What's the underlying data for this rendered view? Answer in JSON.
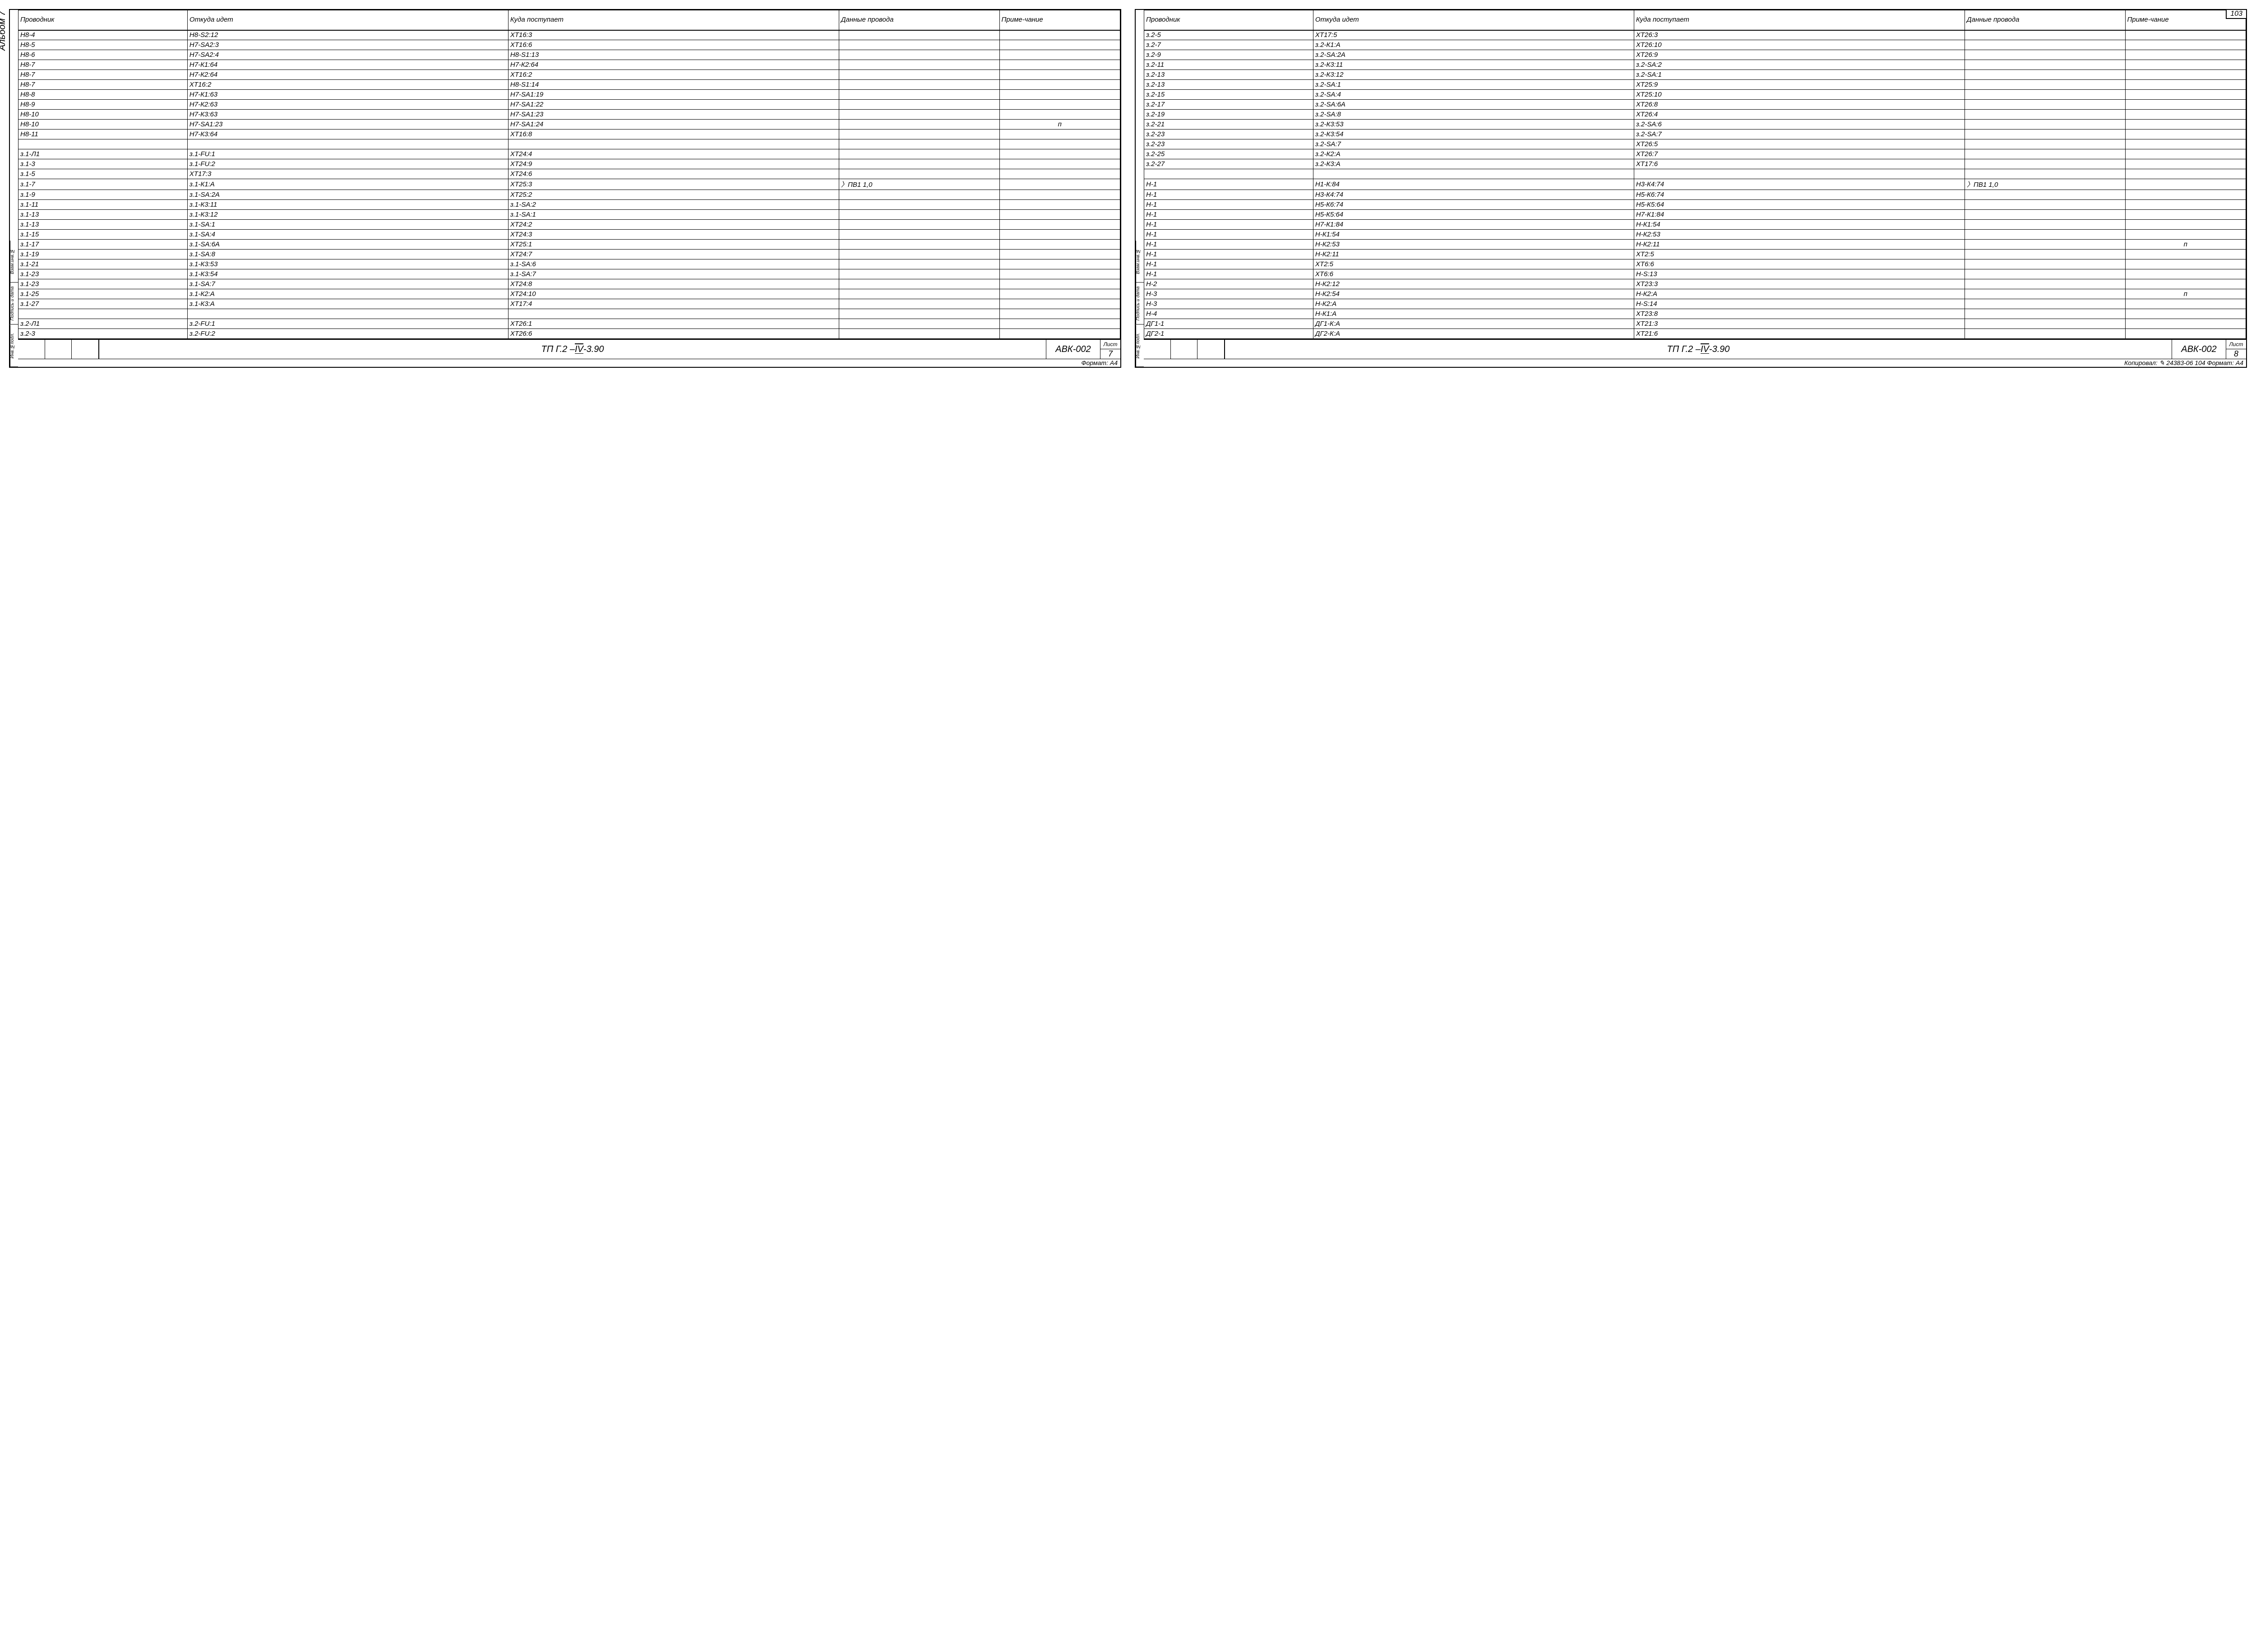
{
  "outer_page_number": "103",
  "album_label": "Альбом 7",
  "headers": {
    "provodnik": "Проводник",
    "otkuda": "Откуда идет",
    "kuda": "Куда поступает",
    "dannye": "Данные провода",
    "prim": "Приме-чание"
  },
  "side_labels": [
    "Инв.№подл.",
    "Подпись и дата",
    "Взам.инв.№"
  ],
  "title_block": {
    "designation_prefix": "ТП Г.2 – ",
    "designation_roman": "IV",
    "designation_suffix": "-3.90",
    "code": "АВК-002",
    "sheet_label": "Лист"
  },
  "left_page": {
    "sheet_num": "7",
    "footer": "Формат: А4",
    "dannye_span": "ПВ1  1,0",
    "rows": [
      {
        "p": "Н8-4",
        "o": "Н8-S2:12",
        "k": "XT16:3",
        "d": "",
        "n": ""
      },
      {
        "p": "Н8-5",
        "o": "Н7-SA2:3",
        "k": "XT16:6",
        "d": "",
        "n": ""
      },
      {
        "p": "Н8-6",
        "o": "Н7-SA2:4",
        "k": "Н8-S1:13",
        "d": "",
        "n": ""
      },
      {
        "p": "Н8-7",
        "o": "Н7-К1:64",
        "k": "Н7-К2:64",
        "d": "",
        "n": ""
      },
      {
        "p": "Н8-7",
        "o": "Н7-К2:64",
        "k": "XT16:2",
        "d": "",
        "n": ""
      },
      {
        "p": "Н8-7",
        "o": "XT16:2",
        "k": "Н8-S1:14",
        "d": "",
        "n": ""
      },
      {
        "p": "Н8-8",
        "o": "Н7-К1:63",
        "k": "Н7-SA1:19",
        "d": "",
        "n": ""
      },
      {
        "p": "Н8-9",
        "o": "Н7-К2:63",
        "k": "Н7-SA1:22",
        "d": "",
        "n": ""
      },
      {
        "p": "Н8-10",
        "o": "Н7-К3:63",
        "k": "Н7-SA1:23",
        "d": "",
        "n": ""
      },
      {
        "p": "Н8-10",
        "o": "Н7-SA1:23",
        "k": "Н7-SA1:24",
        "d": "",
        "n": "п"
      },
      {
        "p": "Н8-11",
        "o": "Н7-К3:64",
        "k": "XT16:8",
        "d": "",
        "n": ""
      },
      {
        "p": "",
        "o": "",
        "k": "",
        "d": "",
        "n": ""
      },
      {
        "p": "з.1-Л1",
        "o": "з.1-FU:1",
        "k": "XT24:4",
        "d": "",
        "n": ""
      },
      {
        "p": "з.1-3",
        "o": "з.1-FU:2",
        "k": "XT24:9",
        "d": "",
        "n": ""
      },
      {
        "p": "з.1-5",
        "o": "XT17:3",
        "k": "XT24:6",
        "d": "",
        "n": ""
      },
      {
        "p": "з.1-7",
        "o": "з.1-К1:А",
        "k": "XT25:3",
        "d": "span",
        "n": ""
      },
      {
        "p": "з.1-9",
        "o": "з.1-SA:2А",
        "k": "XT25:2",
        "d": "",
        "n": ""
      },
      {
        "p": "з.1-11",
        "o": "з.1-К3:11",
        "k": "з.1-SA:2",
        "d": "",
        "n": ""
      },
      {
        "p": "з.1-13",
        "o": "з.1-К3:12",
        "k": "з.1-SA:1",
        "d": "",
        "n": ""
      },
      {
        "p": "з.1-13",
        "o": "з.1-SA:1",
        "k": "XT24:2",
        "d": "",
        "n": ""
      },
      {
        "p": "з.1-15",
        "o": "з.1-SA:4",
        "k": "XT24:3",
        "d": "",
        "n": ""
      },
      {
        "p": "з.1-17",
        "o": "з.1-SA:6А",
        "k": "XT25:1",
        "d": "",
        "n": ""
      },
      {
        "p": "з.1-19",
        "o": "з.1-SA:8",
        "k": "XT24:7",
        "d": "",
        "n": ""
      },
      {
        "p": "з.1-21",
        "o": "з.1-К3:53",
        "k": "з.1-SA:6",
        "d": "",
        "n": ""
      },
      {
        "p": "з.1-23",
        "o": "з.1-К3:54",
        "k": "з.1-SA:7",
        "d": "",
        "n": ""
      },
      {
        "p": "з.1-23",
        "o": "з.1-SA:7",
        "k": "XT24:8",
        "d": "",
        "n": ""
      },
      {
        "p": "з.1-25",
        "o": "з.1-К2:А",
        "k": "XT24:10",
        "d": "",
        "n": ""
      },
      {
        "p": "з.1-27",
        "o": "з.1-К3:А",
        "k": "XT17:4",
        "d": "",
        "n": ""
      },
      {
        "p": "",
        "o": "",
        "k": "",
        "d": "",
        "n": ""
      },
      {
        "p": "з.2-Л1",
        "o": "з.2-FU:1",
        "k": "XT26:1",
        "d": "",
        "n": ""
      },
      {
        "p": "з.2-3",
        "o": "з.2-FU:2",
        "k": "XT26:6",
        "d": "",
        "n": ""
      }
    ]
  },
  "right_page": {
    "sheet_num": "8",
    "footer": "Копировал: ✎   24383-06 104 Формат: А4",
    "dannye_span": "ПВ1  1,0",
    "rows": [
      {
        "p": "з.2-5",
        "o": "XT17:5",
        "k": "XT26:3",
        "d": "",
        "n": ""
      },
      {
        "p": "з.2-7",
        "o": "з.2-К1:А",
        "k": "XT26:10",
        "d": "",
        "n": ""
      },
      {
        "p": "з.2-9",
        "o": "з.2-SA:2А",
        "k": "XT26:9",
        "d": "",
        "n": ""
      },
      {
        "p": "з.2-11",
        "o": "з.2-К3:11",
        "k": "з.2-SA:2",
        "d": "",
        "n": ""
      },
      {
        "p": "з.2-13",
        "o": "з.2-К3:12",
        "k": "з.2-SA:1",
        "d": "",
        "n": ""
      },
      {
        "p": "з.2-13",
        "o": "з.2-SA:1",
        "k": "XT25:9",
        "d": "",
        "n": ""
      },
      {
        "p": "з.2-15",
        "o": "з.2-SA:4",
        "k": "XT25:10",
        "d": "",
        "n": ""
      },
      {
        "p": "з.2-17",
        "o": "з.2-SA:6А",
        "k": "XT26:8",
        "d": "",
        "n": ""
      },
      {
        "p": "з.2-19",
        "o": "з.2-SA:8",
        "k": "XT26:4",
        "d": "",
        "n": ""
      },
      {
        "p": "з.2-21",
        "o": "з.2-К3:53",
        "k": "з.2-SA:6",
        "d": "",
        "n": ""
      },
      {
        "p": "з.2-23",
        "o": "з.2-К3:54",
        "k": "з.2-SA:7",
        "d": "",
        "n": ""
      },
      {
        "p": "з.2-23",
        "o": "з.2-SA:7",
        "k": "XT26:5",
        "d": "",
        "n": ""
      },
      {
        "p": "з.2-25",
        "o": "з.2-К2:А",
        "k": "XT26:7",
        "d": "",
        "n": ""
      },
      {
        "p": "з.2-27",
        "o": "з.2-К3:А",
        "k": "XT17:6",
        "d": "",
        "n": ""
      },
      {
        "p": "",
        "o": "",
        "k": "",
        "d": "",
        "n": ""
      },
      {
        "p": "Н-1",
        "o": "Н1-К:84",
        "k": "Н3-К4:74",
        "d": "span",
        "n": ""
      },
      {
        "p": "Н-1",
        "o": "Н3-К4:74",
        "k": "Н5-К6:74",
        "d": "",
        "n": ""
      },
      {
        "p": "Н-1",
        "o": "Н5-К6:74",
        "k": "Н5-К5:64",
        "d": "",
        "n": ""
      },
      {
        "p": "Н-1",
        "o": "Н5-К5:64",
        "k": "Н7-К1:84",
        "d": "",
        "n": ""
      },
      {
        "p": "Н-1",
        "o": "Н7-К1:84",
        "k": "Н-К1:54",
        "d": "",
        "n": ""
      },
      {
        "p": "Н-1",
        "o": "Н-К1:54",
        "k": "Н-К2:53",
        "d": "",
        "n": ""
      },
      {
        "p": "Н-1",
        "o": "Н-К2:53",
        "k": "Н-К2:11",
        "d": "",
        "n": "п"
      },
      {
        "p": "Н-1",
        "o": "Н-К2:11",
        "k": "XT2:5",
        "d": "",
        "n": ""
      },
      {
        "p": "Н-1",
        "o": "XT2:5",
        "k": "XT6:6",
        "d": "",
        "n": ""
      },
      {
        "p": "Н-1",
        "o": "XT6:6",
        "k": "Н-S:13",
        "d": "",
        "n": ""
      },
      {
        "p": "Н-2",
        "o": "Н-К2:12",
        "k": "XT23:3",
        "d": "",
        "n": ""
      },
      {
        "p": "Н-3",
        "o": "Н-К2:54",
        "k": "Н-К2:А",
        "d": "",
        "n": "п"
      },
      {
        "p": "Н-3",
        "o": "Н-К2:А",
        "k": "Н-S:14",
        "d": "",
        "n": ""
      },
      {
        "p": "Н-4",
        "o": "Н-К1:А",
        "k": "XT23:8",
        "d": "",
        "n": ""
      },
      {
        "p": "ДГ1-1",
        "o": "ДГ1-К:А",
        "k": "XT21:3",
        "d": "",
        "n": ""
      },
      {
        "p": "ДГ2-1",
        "o": "ДГ2-К:А",
        "k": "XT21:6",
        "d": "",
        "n": ""
      }
    ]
  }
}
